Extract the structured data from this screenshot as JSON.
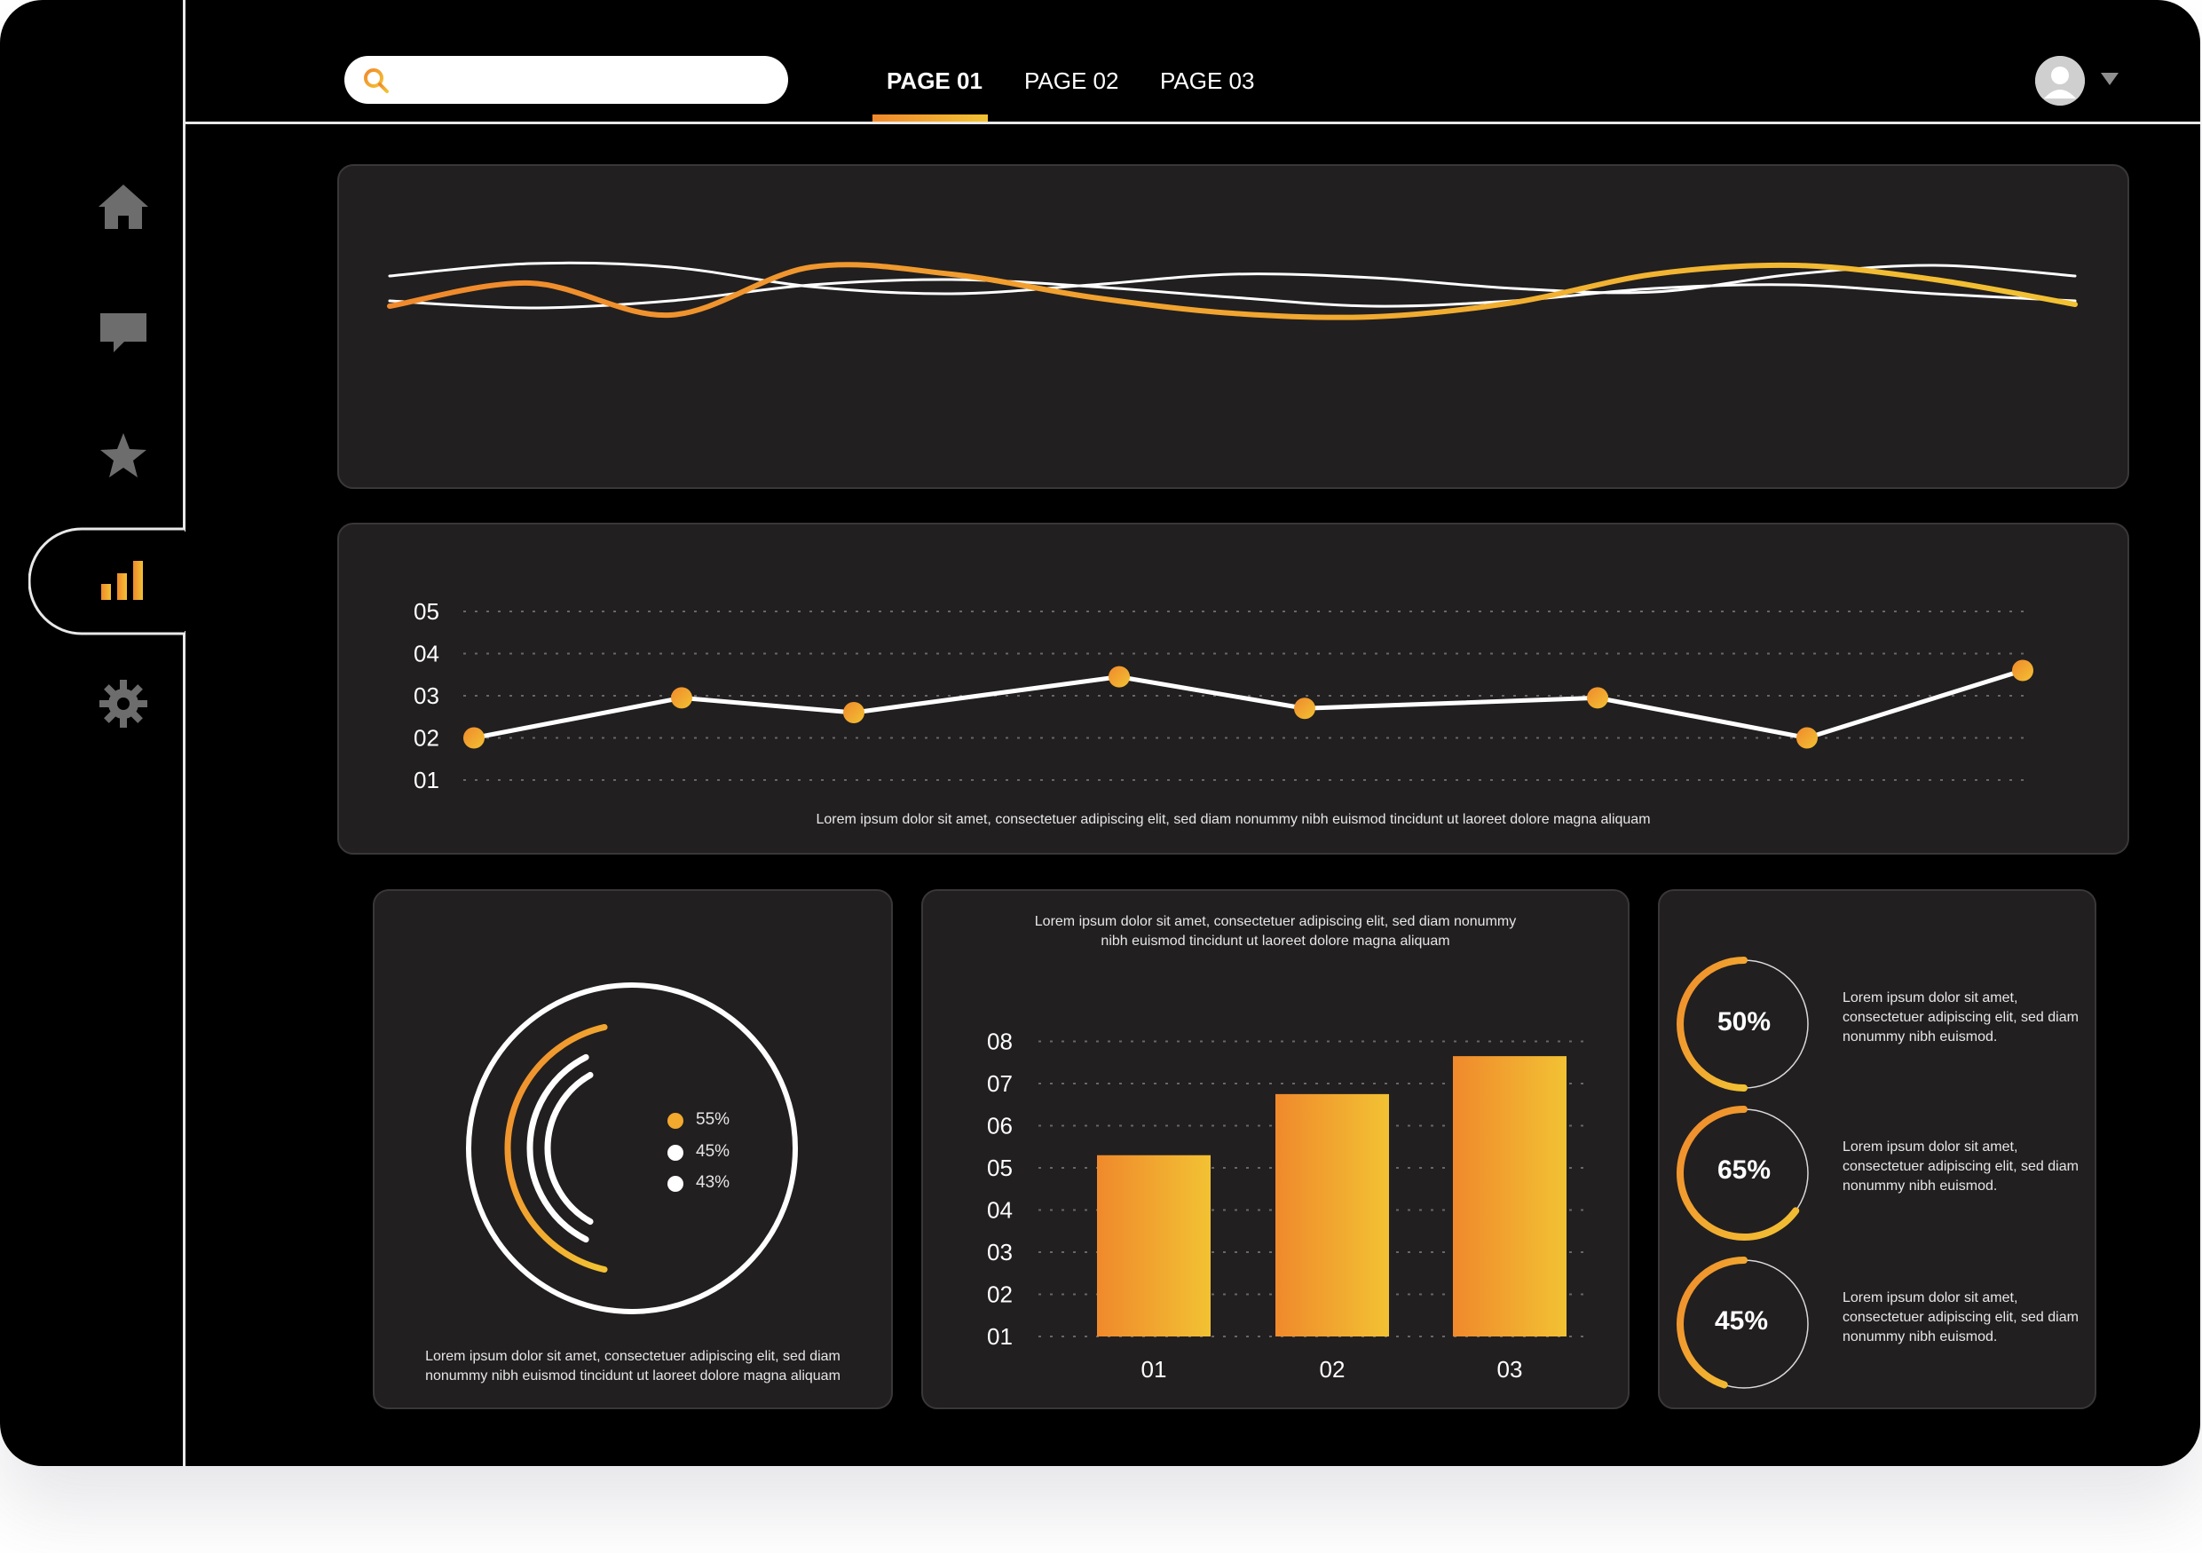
{
  "search": {
    "placeholder": "",
    "value": ""
  },
  "tabs": [
    {
      "label": "PAGE 01",
      "active": true
    },
    {
      "label": "PAGE 02",
      "active": false
    },
    {
      "label": "PAGE 03",
      "active": false
    }
  ],
  "sidebar": {
    "items": [
      {
        "icon": "home-icon",
        "active": false
      },
      {
        "icon": "chat-icon",
        "active": false
      },
      {
        "icon": "star-icon",
        "active": false
      },
      {
        "icon": "bar-chart-icon",
        "active": true
      },
      {
        "icon": "gear-icon",
        "active": false
      }
    ]
  },
  "colors": {
    "accent_start": "#f0892c",
    "accent_end": "#f2c233",
    "panel": "#221f20",
    "icon_inactive": "#6d6d6d"
  },
  "line_panel": {
    "caption": "Lorem ipsum dolor sit amet, consectetuer adipiscing elit, sed diam nonummy nibh euismod tincidunt ut laoreet dolore magna aliquam"
  },
  "bar_panel": {
    "caption": "Lorem ipsum dolor sit amet, consectetuer adipiscing elit, sed diam nonummy nibh euismod tincidunt ut laoreet dolore magna aliquam"
  },
  "radial_panel": {
    "caption": "Lorem ipsum dolor sit amet, consectetuer adipiscing elit, sed diam nonummy nibh euismod tincidunt ut laoreet dolore magna aliquam",
    "legend": [
      {
        "label": "55%",
        "value": 55,
        "color": "#f2a92d"
      },
      {
        "label": "45%",
        "value": 45,
        "color": "#ffffff"
      },
      {
        "label": "43%",
        "value": 43,
        "color": "#ffffff"
      }
    ]
  },
  "rings_panel": {
    "items": [
      {
        "label": "50%",
        "value": 50,
        "text": "Lorem ipsum dolor sit amet, consectetuer adipiscing elit, sed diam nonummy nibh euismod."
      },
      {
        "label": "65%",
        "value": 65,
        "text": "Lorem ipsum dolor sit amet, consectetuer adipiscing elit, sed diam nonummy nibh euismod."
      },
      {
        "label": "45%",
        "value": 45,
        "text": "Lorem ipsum dolor sit amet, consectetuer adipiscing elit, sed diam nonummy nibh euismod."
      }
    ]
  },
  "chart_data": [
    {
      "type": "line",
      "title": "",
      "xlabel": "",
      "ylabel": "",
      "series": [
        {
          "values": [
            2.1,
            3.4,
            1.6,
            4.3,
            3.9,
            2.6,
            1.7,
            1.5,
            2.3,
            3.9,
            4.4,
            3.6,
            2.2
          ]
        },
        {
          "values": [
            3.8,
            4.5,
            4.3,
            3.2,
            2.8,
            3.3,
            3.9,
            3.7,
            3.1,
            2.9,
            3.9,
            4.4,
            3.8
          ]
        },
        {
          "values": [
            2.4,
            2.0,
            2.4,
            3.3,
            3.6,
            3.2,
            2.6,
            2.1,
            2.4,
            3.1,
            3.3,
            2.8,
            2.4
          ]
        }
      ],
      "ylim": [
        0,
        6
      ]
    },
    {
      "type": "line",
      "title": "",
      "ylabel": "",
      "yticks": [
        "01",
        "02",
        "03",
        "04",
        "05"
      ],
      "ylim": [
        1,
        5
      ],
      "grid": true,
      "values": [
        2.0,
        2.95,
        2.6,
        3.45,
        2.7,
        2.95,
        2.0,
        3.6
      ]
    },
    {
      "type": "bar",
      "title": "",
      "categories": [
        "01",
        "02",
        "03"
      ],
      "values": [
        5.3,
        6.75,
        7.65
      ],
      "yticks": [
        "01",
        "02",
        "03",
        "04",
        "05",
        "06",
        "07",
        "08"
      ],
      "ylim": [
        1,
        8
      ],
      "grid": true
    },
    {
      "type": "pie",
      "title": "",
      "categories": [
        "55%",
        "45%",
        "43%"
      ],
      "values": [
        55,
        45,
        43
      ]
    }
  ]
}
